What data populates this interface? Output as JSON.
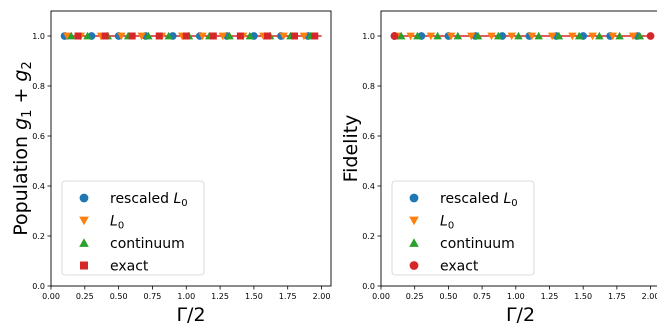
{
  "chart_data": [
    {
      "type": "scatter",
      "xlabel": "Γ/2",
      "ylabel": "Population g₁ + g₂",
      "ylabel_parts": {
        "main": "Population ",
        "g": "g",
        "sub1": "1",
        "plus": " + ",
        "sub2": "2"
      },
      "xlim": [
        0.0,
        2.07
      ],
      "ylim": [
        0.0,
        1.1
      ],
      "xticks": [
        "0.00",
        "0.25",
        "0.50",
        "0.75",
        "1.00",
        "1.25",
        "1.50",
        "1.75",
        "2.00"
      ],
      "yticks": [
        "0.0",
        "0.2",
        "0.4",
        "0.6",
        "0.8",
        "1.0"
      ],
      "grid": false,
      "legend_position": "lower-left",
      "line": {
        "x": [
          0.1,
          2.0
        ],
        "y": [
          1.0,
          1.0
        ],
        "color": "#d62728"
      },
      "series": [
        {
          "name": "rescaled L₀",
          "name_main": "rescaled ",
          "name_var": "L",
          "name_sub": "0",
          "marker": "circle",
          "color": "#1f77b4",
          "x": [
            0.1,
            0.3,
            0.5,
            0.7,
            0.9,
            1.1,
            1.3,
            1.5,
            1.7,
            1.9
          ],
          "y": [
            1,
            1,
            1,
            1,
            1,
            1,
            1,
            1,
            1,
            1
          ]
        },
        {
          "name": "L₀",
          "name_main": "",
          "name_var": "L",
          "name_sub": "0",
          "marker": "triangle-down",
          "color": "#ff7f0e",
          "x": [
            0.12,
            0.22,
            0.37,
            0.52,
            0.67,
            0.82,
            0.97,
            1.12,
            1.27,
            1.42,
            1.57,
            1.72,
            1.87
          ],
          "y": [
            1,
            1,
            1,
            1,
            1,
            1,
            1,
            1,
            1,
            1,
            1,
            1,
            1
          ]
        },
        {
          "name": "continuum",
          "marker": "triangle-up",
          "color": "#2ca02c",
          "x": [
            0.15,
            0.27,
            0.42,
            0.57,
            0.72,
            0.87,
            1.02,
            1.17,
            1.32,
            1.47,
            1.62,
            1.77,
            1.92
          ],
          "y": [
            1,
            1,
            1,
            1,
            1,
            1,
            1,
            1,
            1,
            1,
            1,
            1,
            1
          ]
        },
        {
          "name": "exact",
          "marker": "square",
          "color": "#d62728",
          "x": [
            0.2,
            0.4,
            0.6,
            0.8,
            1.0,
            1.2,
            1.4,
            1.6,
            1.8,
            1.95
          ],
          "y": [
            1,
            1,
            1,
            1,
            1,
            1,
            1,
            1,
            1,
            1
          ]
        }
      ]
    },
    {
      "type": "scatter",
      "xlabel": "Γ/2",
      "ylabel": "Fidelity",
      "xlim": [
        0.0,
        2.07
      ],
      "ylim": [
        0.0,
        1.1
      ],
      "xticks": [
        "0.00",
        "0.25",
        "0.50",
        "0.75",
        "1.00",
        "1.25",
        "1.50",
        "1.75",
        "2.00"
      ],
      "yticks": [
        "0.0",
        "0.2",
        "0.4",
        "0.6",
        "0.8",
        "1.0"
      ],
      "grid": false,
      "legend_position": "lower-left",
      "line": {
        "x": [
          0.1,
          2.0
        ],
        "y": [
          1.0,
          1.0
        ],
        "color": "#d62728"
      },
      "series": [
        {
          "name": "rescaled L₀",
          "name_main": "rescaled ",
          "name_var": "L",
          "name_sub": "0",
          "marker": "circle",
          "color": "#1f77b4",
          "x": [
            0.1,
            0.3,
            0.5,
            0.7,
            0.9,
            1.1,
            1.3,
            1.5,
            1.7,
            1.9
          ],
          "y": [
            1,
            1,
            1,
            1,
            1,
            1,
            1,
            1,
            1,
            1
          ]
        },
        {
          "name": "L₀",
          "name_main": "",
          "name_var": "L",
          "name_sub": "0",
          "marker": "triangle-down",
          "color": "#ff7f0e",
          "x": [
            0.12,
            0.22,
            0.37,
            0.52,
            0.67,
            0.82,
            0.97,
            1.12,
            1.27,
            1.42,
            1.57,
            1.72,
            1.87
          ],
          "y": [
            1,
            1,
            1,
            1,
            1,
            1,
            1,
            1,
            1,
            1,
            1,
            1,
            1
          ]
        },
        {
          "name": "continuum",
          "marker": "triangle-up",
          "color": "#2ca02c",
          "x": [
            0.15,
            0.27,
            0.42,
            0.57,
            0.72,
            0.87,
            1.02,
            1.17,
            1.32,
            1.47,
            1.62,
            1.77,
            1.92
          ],
          "y": [
            1,
            1,
            1,
            1,
            1,
            1,
            1,
            1,
            1,
            1,
            1,
            1,
            1
          ]
        },
        {
          "name": "exact",
          "marker": "circle",
          "color": "#d62728",
          "x": [
            0.1,
            2.0
          ],
          "y": [
            1,
            1
          ]
        }
      ]
    }
  ]
}
